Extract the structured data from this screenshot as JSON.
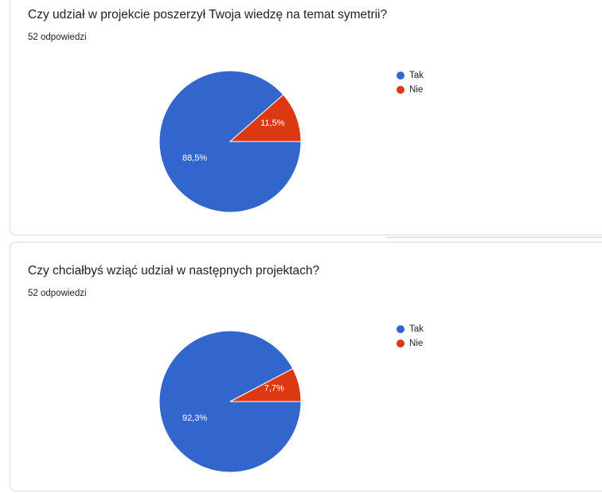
{
  "cards": [
    {
      "question": "Czy udział w projekcie poszerzył Twoja wiedzę na temat symetrii?",
      "responses": "52 odpowiedzi",
      "legend": [
        {
          "label": "Tak",
          "color": "#3366cc"
        },
        {
          "label": "Nie",
          "color": "#dc3912"
        }
      ]
    },
    {
      "question": "Czy chciałbyś wziąć udział w następnych projektach?",
      "responses": "52 odpowiedzi",
      "legend": [
        {
          "label": "Tak",
          "color": "#3366cc"
        },
        {
          "label": "Nie",
          "color": "#dc3912"
        }
      ]
    }
  ],
  "chart_data": [
    {
      "type": "pie",
      "categories": [
        "Tak",
        "Nie"
      ],
      "values": [
        88.5,
        11.5
      ],
      "labels": [
        "88,5%",
        "11,5%"
      ],
      "colors": [
        "#3366cc",
        "#dc3912"
      ],
      "legend_position": "right"
    },
    {
      "type": "pie",
      "categories": [
        "Tak",
        "Nie"
      ],
      "values": [
        92.3,
        7.7
      ],
      "labels": [
        "92,3%",
        "7,7%"
      ],
      "colors": [
        "#3366cc",
        "#dc3912"
      ],
      "legend_position": "right"
    }
  ]
}
